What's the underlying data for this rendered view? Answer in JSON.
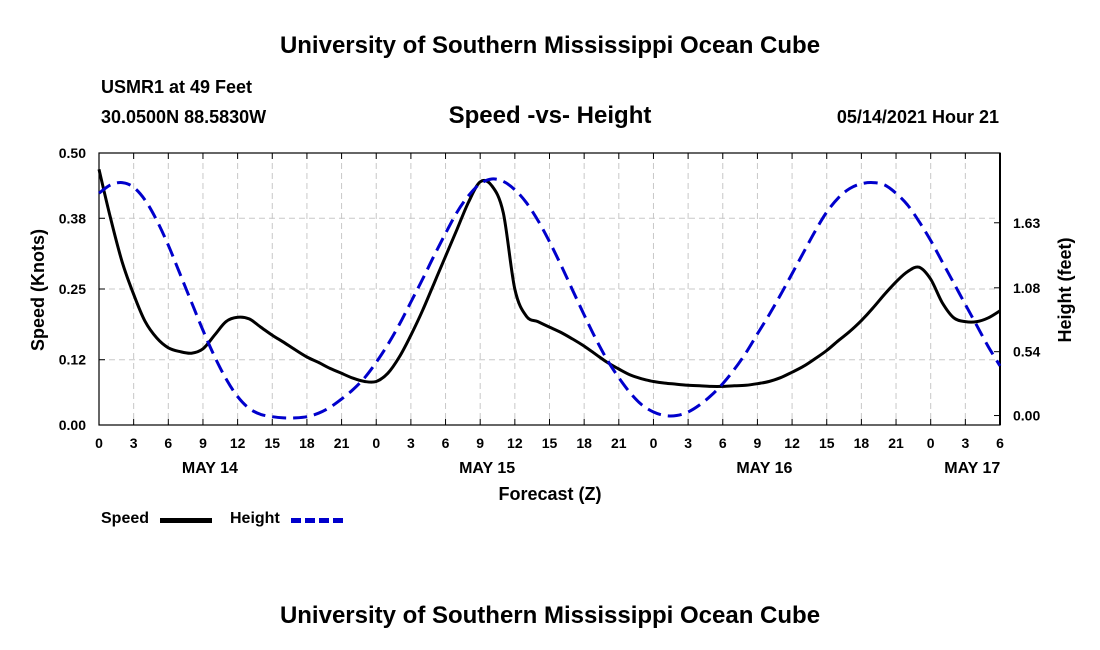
{
  "page": {
    "title_top": "University of Southern Mississippi Ocean Cube",
    "title_bottom": "University of Southern Mississippi Ocean Cube",
    "station": "USMR1 at 49 Feet",
    "coords": "30.0500N  88.5830W",
    "subtitle": "Speed -vs- Height",
    "timestamp": "05/14/2021 Hour 21"
  },
  "legend": {
    "speed_label": "Speed",
    "height_label": "Height"
  },
  "colors": {
    "speed": "#000000",
    "height": "#0000cc",
    "grid": "#c8c8c8"
  },
  "chart_data": {
    "type": "line",
    "title": "Speed -vs- Height",
    "xlabel": "Forecast (Z)",
    "ylabel": "Speed (Knots)",
    "ylabel_right": "Height (feet)",
    "x_unit": "hours from May 14 00Z",
    "xlim": [
      0,
      78
    ],
    "ylim": [
      0,
      0.5
    ],
    "ylim_right": [
      -0.08,
      2.22
    ],
    "x_ticks": [
      0,
      3,
      6,
      9,
      12,
      15,
      18,
      21,
      24,
      27,
      30,
      33,
      36,
      39,
      42,
      45,
      48,
      51,
      54,
      57,
      60,
      63,
      66,
      69,
      72,
      75,
      78
    ],
    "x_tick_labels": [
      "0",
      "3",
      "6",
      "9",
      "12",
      "15",
      "18",
      "21",
      "0",
      "3",
      "6",
      "9",
      "12",
      "15",
      "18",
      "21",
      "0",
      "3",
      "6",
      "9",
      "12",
      "15",
      "18",
      "21",
      "0",
      "3",
      "6"
    ],
    "date_labels": [
      {
        "x": 9.6,
        "label": "MAY 14"
      },
      {
        "x": 33.6,
        "label": "MAY 15"
      },
      {
        "x": 57.6,
        "label": "MAY 16"
      },
      {
        "x": 75.6,
        "label": "MAY 17"
      }
    ],
    "y_ticks": [
      0.0,
      0.12,
      0.25,
      0.38,
      0.5
    ],
    "y_tick_labels": [
      "0.00",
      "0.12",
      "0.25",
      "0.38",
      "0.50"
    ],
    "y_right_ticks": [
      0.0,
      0.54,
      1.08,
      1.63
    ],
    "y_right_tick_labels": [
      "0.00",
      "0.54",
      "1.08",
      "1.63"
    ],
    "grid": true,
    "series": [
      {
        "name": "Speed",
        "axis": "left",
        "style": "solid",
        "x": [
          0,
          1,
          2,
          3,
          4,
          5,
          6,
          7,
          8,
          9,
          10,
          11,
          12,
          13,
          14,
          15,
          16,
          17,
          18,
          19,
          20,
          21,
          22,
          23,
          24,
          25,
          26,
          27,
          28,
          29,
          30,
          31,
          32,
          33,
          34,
          35,
          36,
          37,
          38,
          39,
          40,
          41,
          42,
          43,
          44,
          45,
          46,
          47,
          48,
          49,
          50,
          51,
          52,
          53,
          54,
          55,
          56,
          57,
          58,
          59,
          60,
          61,
          62,
          63,
          64,
          65,
          66,
          67,
          68,
          69,
          70,
          71,
          72,
          73,
          74,
          75,
          76,
          77,
          78
        ],
        "values": [
          0.47,
          0.38,
          0.3,
          0.24,
          0.19,
          0.16,
          0.142,
          0.135,
          0.132,
          0.14,
          0.165,
          0.19,
          0.198,
          0.195,
          0.18,
          0.165,
          0.152,
          0.138,
          0.125,
          0.115,
          0.104,
          0.095,
          0.086,
          0.08,
          0.08,
          0.095,
          0.125,
          0.165,
          0.21,
          0.26,
          0.31,
          0.36,
          0.41,
          0.447,
          0.44,
          0.39,
          0.25,
          0.2,
          0.19,
          0.18,
          0.17,
          0.158,
          0.145,
          0.13,
          0.115,
          0.103,
          0.092,
          0.085,
          0.08,
          0.077,
          0.075,
          0.073,
          0.072,
          0.071,
          0.071,
          0.072,
          0.073,
          0.076,
          0.08,
          0.087,
          0.097,
          0.108,
          0.122,
          0.137,
          0.155,
          0.172,
          0.192,
          0.215,
          0.24,
          0.263,
          0.282,
          0.29,
          0.268,
          0.225,
          0.197,
          0.19,
          0.19,
          0.197,
          0.21
        ]
      },
      {
        "name": "Height",
        "axis": "right",
        "style": "dashed",
        "x": [
          0,
          1,
          2,
          3,
          4,
          5,
          6,
          7,
          8,
          9,
          10,
          11,
          12,
          13,
          14,
          15,
          16,
          17,
          18,
          19,
          20,
          21,
          22,
          23,
          24,
          25,
          26,
          27,
          28,
          29,
          30,
          31,
          32,
          33,
          34,
          35,
          36,
          37,
          38,
          39,
          40,
          41,
          42,
          43,
          44,
          45,
          46,
          47,
          48,
          49,
          50,
          51,
          52,
          53,
          54,
          55,
          56,
          57,
          58,
          59,
          60,
          61,
          62,
          63,
          64,
          65,
          66,
          67,
          68,
          69,
          70,
          71,
          72,
          73,
          74,
          75,
          76,
          77,
          78
        ],
        "values": [
          1.88,
          1.95,
          1.97,
          1.93,
          1.82,
          1.65,
          1.44,
          1.2,
          0.96,
          0.72,
          0.5,
          0.31,
          0.16,
          0.06,
          0.01,
          -0.01,
          -0.02,
          -0.02,
          -0.01,
          0.02,
          0.07,
          0.14,
          0.22,
          0.32,
          0.45,
          0.6,
          0.77,
          0.96,
          1.15,
          1.35,
          1.54,
          1.72,
          1.86,
          1.96,
          2.0,
          1.98,
          1.91,
          1.8,
          1.65,
          1.47,
          1.27,
          1.06,
          0.85,
          0.65,
          0.47,
          0.32,
          0.19,
          0.09,
          0.03,
          0.0,
          0.0,
          0.03,
          0.09,
          0.17,
          0.27,
          0.39,
          0.53,
          0.69,
          0.85,
          1.02,
          1.2,
          1.38,
          1.56,
          1.72,
          1.84,
          1.92,
          1.96,
          1.97,
          1.95,
          1.88,
          1.78,
          1.64,
          1.48,
          1.3,
          1.12,
          0.94,
          0.76,
          0.58,
          0.42
        ]
      }
    ]
  }
}
